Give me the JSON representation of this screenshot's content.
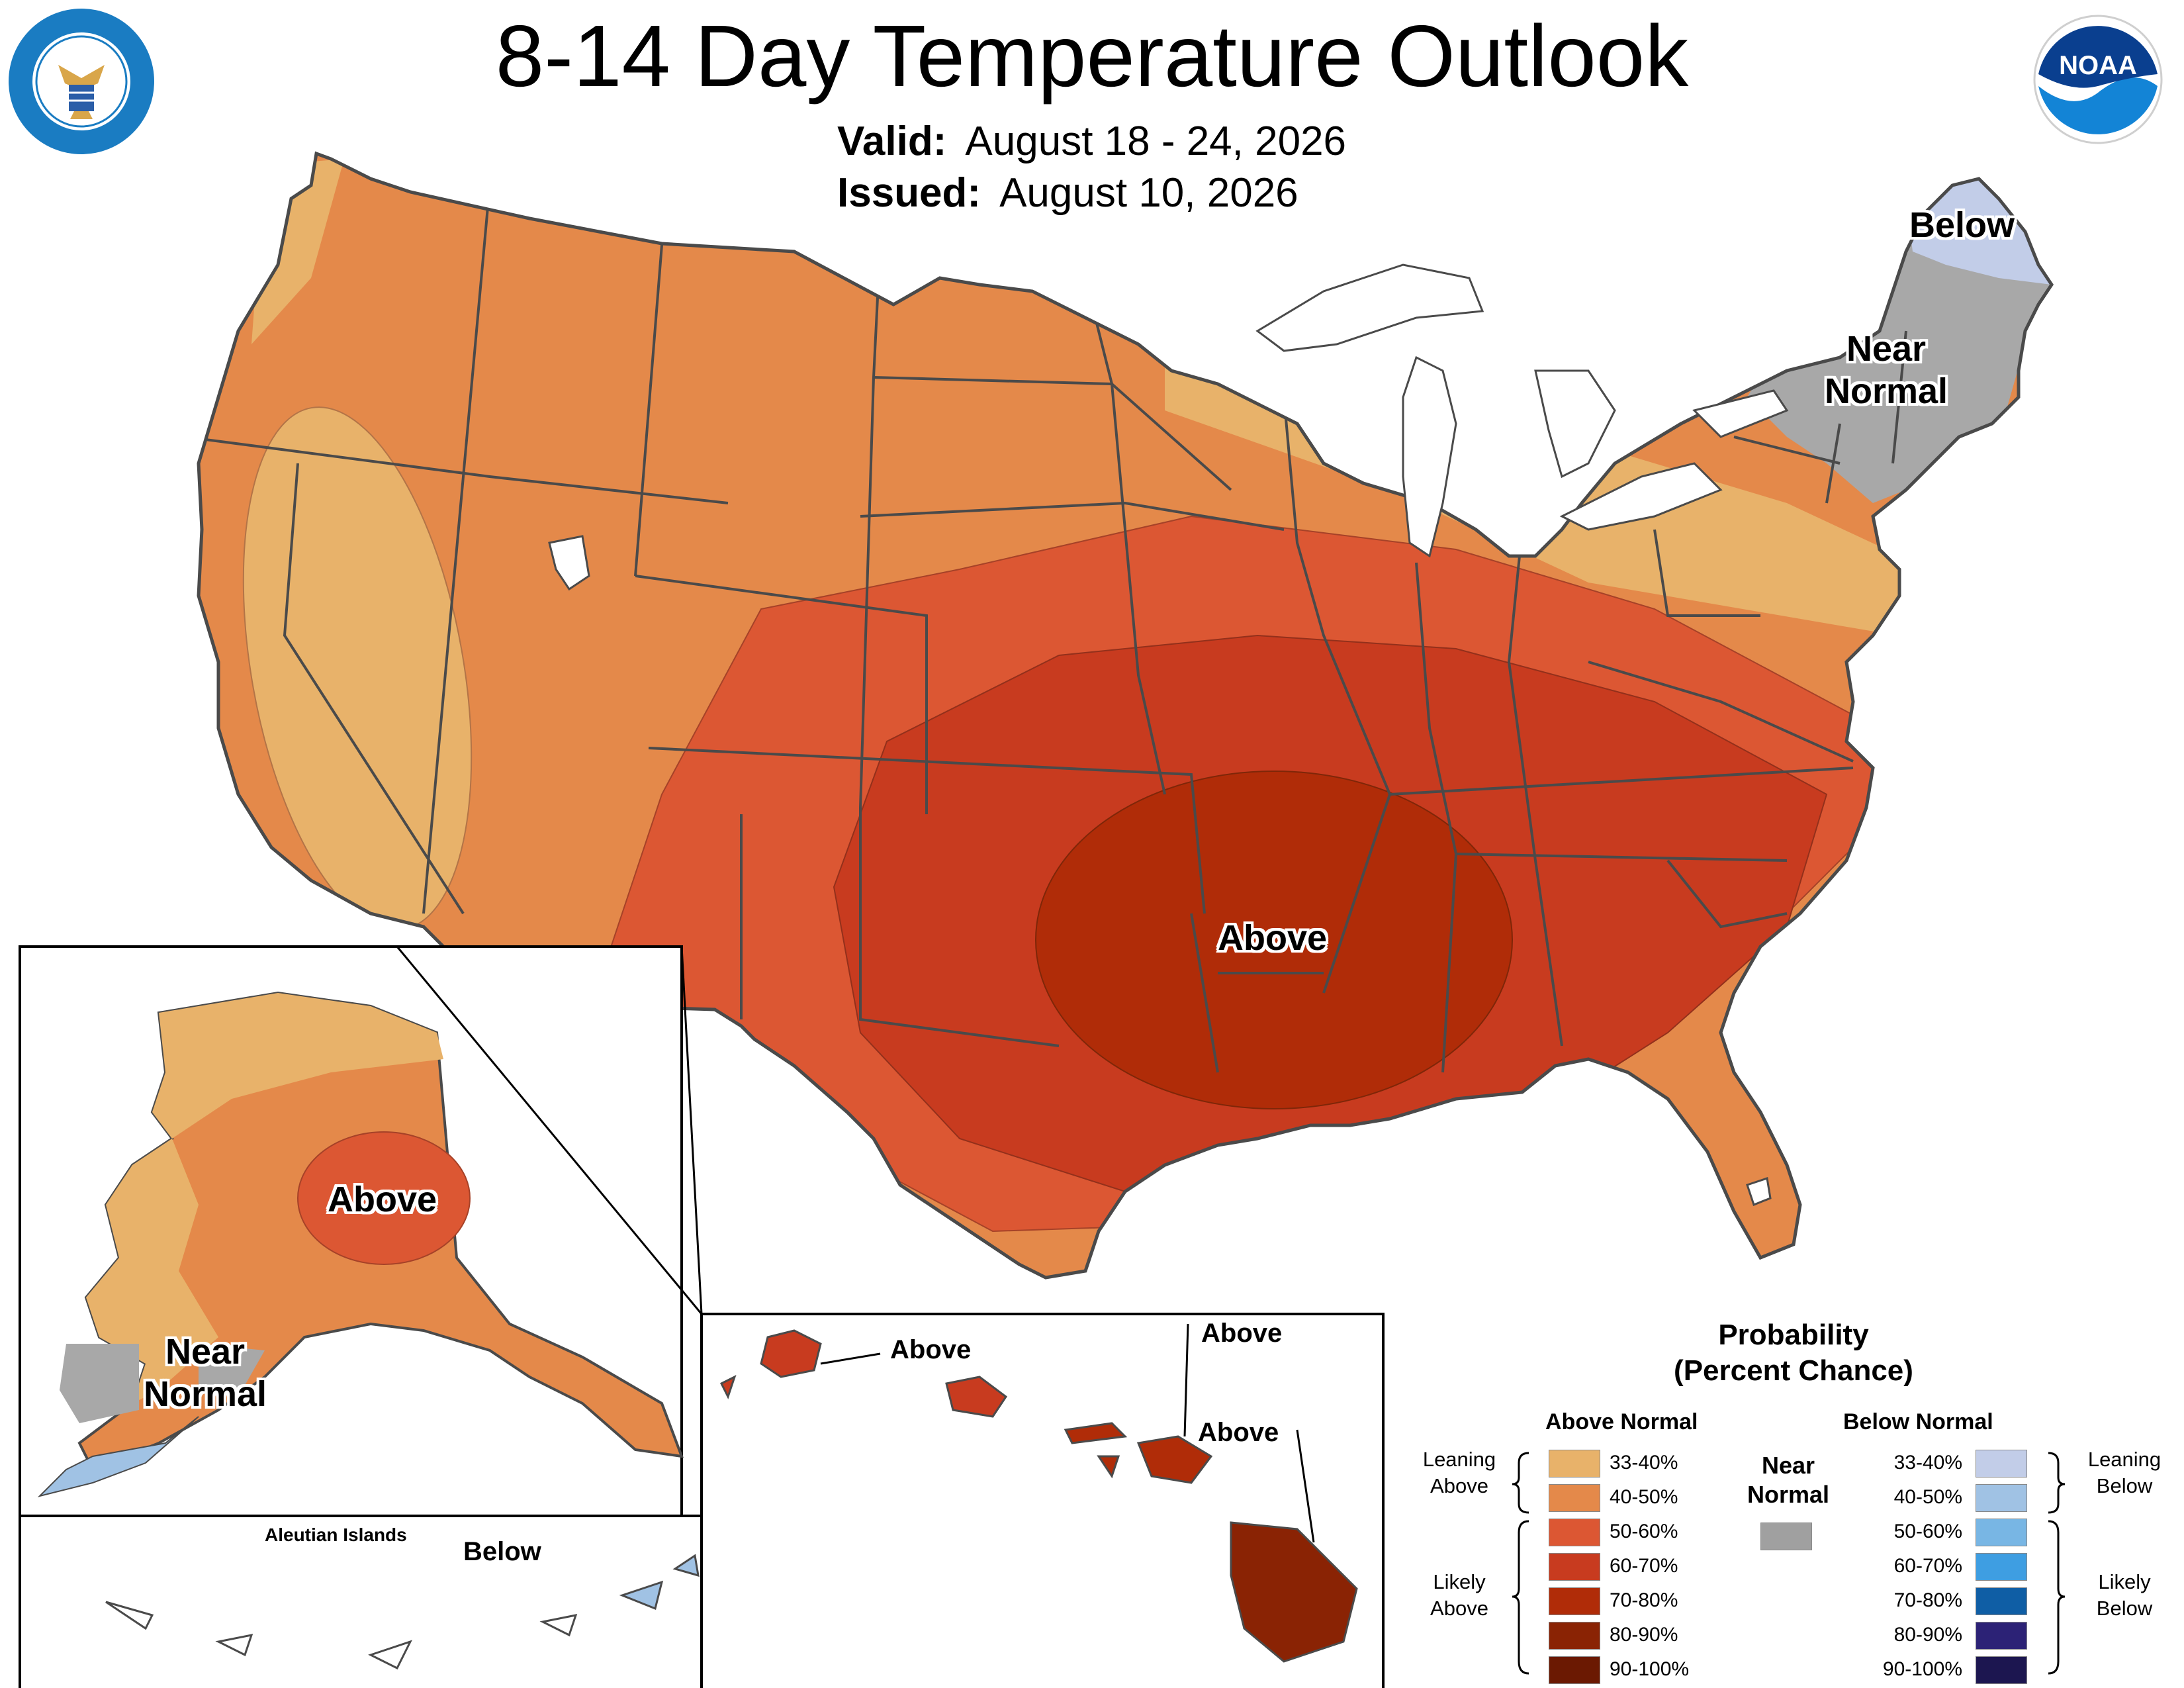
{
  "title": "8-14 Day Temperature Outlook",
  "valid": {
    "label": "Valid:",
    "value": "August 18 - 24, 2026"
  },
  "issued": {
    "label": "Issued:",
    "value": "August 10, 2026"
  },
  "logos": {
    "commerce": {
      "icon": "department-of-commerce-seal-icon",
      "text": "DEPARTMENT OF COMMERCE · UNITED STATES OF AMERICA"
    },
    "noaa": {
      "icon": "noaa-logo-icon",
      "text": "NOAA"
    }
  },
  "map_labels": {
    "conus_above": "Above",
    "conus_near_normal": "Near Normal",
    "conus_below": "Below",
    "alaska_above": "Above",
    "alaska_near_normal": "Near Normal",
    "aleutian_title": "Aleutian Islands",
    "aleutian_below": "Below",
    "hawaii_kauai": "Above",
    "hawaii_maui": "Above",
    "hawaii_molokai": "Above"
  },
  "legend": {
    "title_line1": "Probability",
    "title_line2": "(Percent Chance)",
    "above_header": "Above Normal",
    "below_header": "Below Normal",
    "near_normal": "Near Normal",
    "near_normal_color": "#a0a0a0",
    "leaning_above": "Leaning Above",
    "likely_above": "Likely Above",
    "leaning_below": "Leaning Below",
    "likely_below": "Likely Below",
    "above_bins": [
      {
        "label": "33-40%",
        "color": "#e8b26a"
      },
      {
        "label": "40-50%",
        "color": "#e4894a"
      },
      {
        "label": "50-60%",
        "color": "#dc5733"
      },
      {
        "label": "60-70%",
        "color": "#c83b1f"
      },
      {
        "label": "70-80%",
        "color": "#b02c08"
      },
      {
        "label": "80-90%",
        "color": "#8a2304"
      },
      {
        "label": "90-100%",
        "color": "#6b1902"
      }
    ],
    "below_bins": [
      {
        "label": "33-40%",
        "color": "#c2cde8"
      },
      {
        "label": "40-50%",
        "color": "#a0c2e4"
      },
      {
        "label": "50-60%",
        "color": "#78b6e4"
      },
      {
        "label": "60-70%",
        "color": "#3e9ee2"
      },
      {
        "label": "70-80%",
        "color": "#0f5ea5"
      },
      {
        "label": "80-90%",
        "color": "#2c2276"
      },
      {
        "label": "90-100%",
        "color": "#1c1650"
      }
    ]
  }
}
